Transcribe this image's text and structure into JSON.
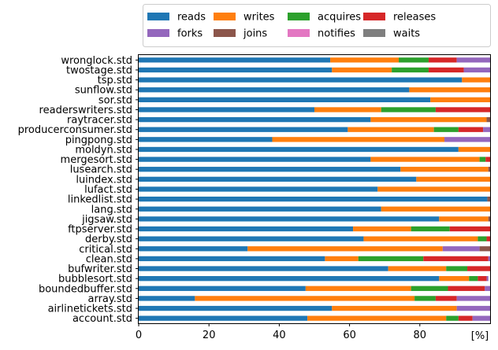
{
  "chart_data": {
    "type": "bar",
    "orientation": "horizontal",
    "stacked": true,
    "xlabel": "[%]",
    "xlim": [
      0,
      100
    ],
    "xticks": [
      0,
      20,
      40,
      60,
      80
    ],
    "legend_position": "top",
    "categories": [
      "wronglock.std",
      "twostage.std",
      "tsp.std",
      "sunflow.std",
      "sor.std",
      "readerswriters.std",
      "raytracer.std",
      "producerconsumer.std",
      "pingpong.std",
      "moldyn.std",
      "mergesort.std",
      "lusearch.std",
      "luindex.std",
      "lufact.std",
      "linkedlist.std",
      "lang.std",
      "jigsaw.std",
      "ftpserver.std",
      "derby.std",
      "critical.std",
      "clean.std",
      "bufwriter.std",
      "bubblesort.std",
      "boundedbuffer.std",
      "array.std",
      "airlinetickets.std",
      "account.std"
    ],
    "series": [
      {
        "name": "reads",
        "color": "#1f77b4",
        "values": [
          54.5,
          55,
          92,
          77,
          83,
          50,
          66,
          59.5,
          38,
          91,
          66,
          74.5,
          79,
          68,
          99.2,
          69,
          85.5,
          61,
          64,
          31,
          53,
          71,
          85.5,
          47.5,
          16,
          55,
          48
        ]
      },
      {
        "name": "writes",
        "color": "#ff7f0e",
        "values": [
          19.5,
          17,
          8,
          23,
          17,
          19,
          33,
          24.5,
          49,
          9,
          31,
          25,
          21,
          32,
          0,
          31,
          14,
          16.5,
          32.5,
          55.5,
          9.5,
          16.5,
          8.5,
          30,
          62.5,
          35.5,
          39.5
        ]
      },
      {
        "name": "acquires",
        "color": "#2ca02c",
        "values": [
          8.5,
          10.5,
          0,
          0,
          0,
          15.5,
          0,
          7,
          0,
          0,
          1.7,
          0,
          0,
          0,
          0,
          0,
          0,
          11,
          2.5,
          0,
          18.5,
          6,
          2.5,
          10.5,
          6,
          0,
          3.5
        ]
      },
      {
        "name": "releases",
        "color": "#d62728",
        "values": [
          8,
          10,
          0,
          0,
          0,
          15.5,
          0,
          7,
          0,
          0,
          1.7,
          0,
          0,
          0,
          0,
          0,
          0,
          11.5,
          1,
          0,
          18.5,
          6.5,
          2.5,
          10.5,
          6,
          0,
          4
        ]
      },
      {
        "name": "forks",
        "color": "#9467bd",
        "values": [
          9.5,
          7.5,
          0,
          0,
          0,
          0,
          0,
          2,
          13,
          0,
          0,
          0,
          0,
          0,
          0,
          0,
          0,
          0,
          0,
          10.5,
          0.5,
          0,
          0.5,
          1.5,
          9.5,
          9.5,
          5
        ]
      },
      {
        "name": "joins",
        "color": "#8c564b",
        "values": [
          0,
          0,
          0,
          0,
          0,
          0,
          1,
          0,
          0,
          0,
          0.6,
          0.5,
          0,
          0,
          0.8,
          0,
          0.5,
          0,
          0,
          3,
          0,
          0,
          0,
          0,
          0,
          0,
          0
        ]
      },
      {
        "name": "notifies",
        "color": "#e377c2",
        "values": [
          0,
          0,
          0,
          0,
          0,
          0,
          0,
          0,
          0,
          0,
          0,
          0,
          0,
          0,
          0,
          0,
          0,
          0,
          0,
          0,
          0,
          0,
          0,
          0,
          0,
          0,
          0
        ]
      },
      {
        "name": "waits",
        "color": "#7f7f7f",
        "values": [
          0,
          0,
          0,
          0,
          0,
          0,
          0,
          0,
          0,
          0,
          0,
          0,
          0,
          0,
          0,
          0,
          0,
          0,
          0,
          0,
          0,
          0,
          0,
          0,
          0,
          0,
          0
        ]
      }
    ]
  }
}
